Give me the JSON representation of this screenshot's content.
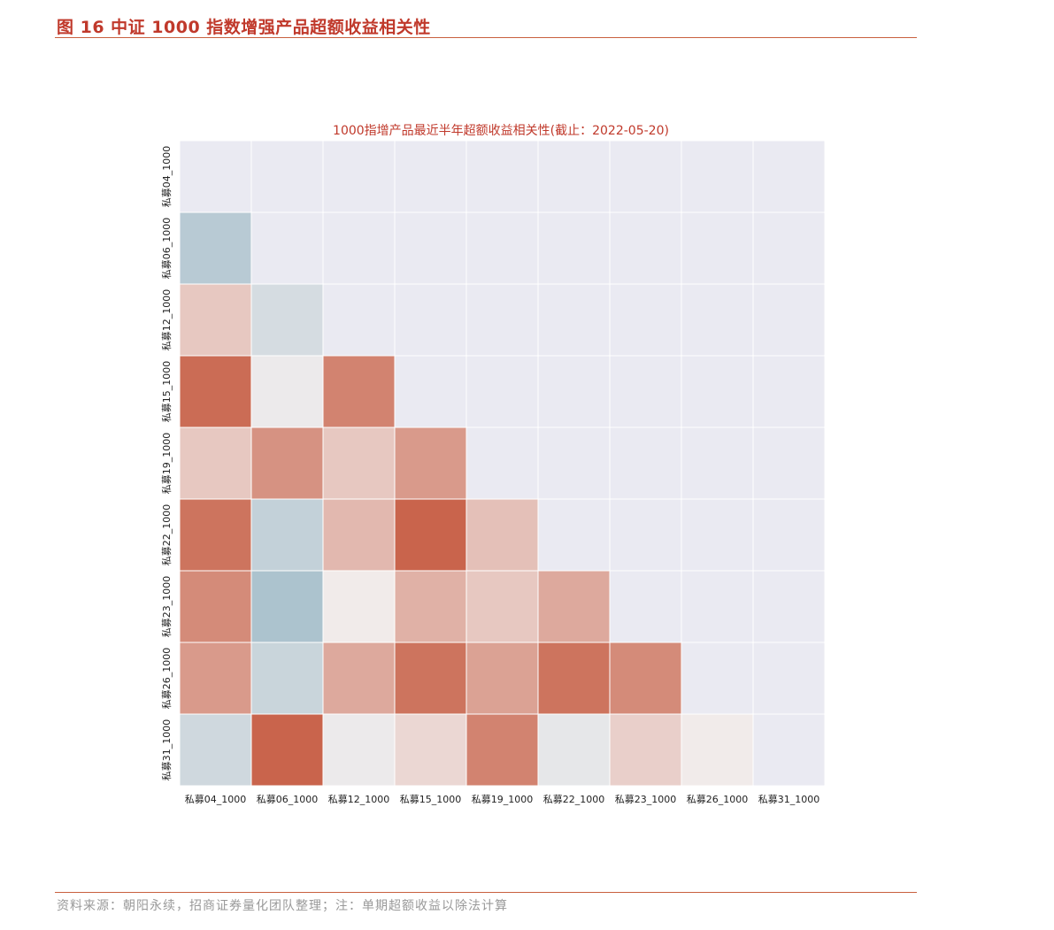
{
  "figure": {
    "title": "图 16 中证 1000 指数增强产品超额收益相关性",
    "source": "资料来源：朝阳永续，招商证券量化团队整理；注：单期超额收益以除法计算"
  },
  "colors": {
    "accent": "#c0392b",
    "background_cell": "#eaeaf2",
    "grid": "#ffffff",
    "high": "#c4553a",
    "neutral": "#f2eeee",
    "low": "#7da6b9"
  },
  "chart_data": {
    "type": "heatmap",
    "title": "1000指增产品最近半年超额收益相关性(截止：2022-05-20)",
    "labels": [
      "私募04_1000",
      "私募06_1000",
      "私募12_1000",
      "私募15_1000",
      "私募19_1000",
      "私募22_1000",
      "私募23_1000",
      "私募26_1000",
      "私募31_1000"
    ],
    "mask": "upper-triangle-and-diagonal",
    "value_range": [
      -1,
      1
    ],
    "values": [
      [
        null,
        null,
        null,
        null,
        null,
        null,
        null,
        null,
        null
      ],
      [
        -0.5,
        null,
        null,
        null,
        null,
        null,
        null,
        null,
        null
      ],
      [
        0.25,
        -0.25,
        null,
        null,
        null,
        null,
        null,
        null,
        null
      ],
      [
        0.85,
        -0.05,
        0.7,
        null,
        null,
        null,
        null,
        null,
        null
      ],
      [
        0.25,
        0.6,
        0.25,
        0.55,
        null,
        null,
        null,
        null,
        null
      ],
      [
        0.8,
        -0.4,
        0.35,
        0.9,
        0.3,
        null,
        null,
        null,
        null
      ],
      [
        0.65,
        -0.6,
        0.02,
        0.4,
        0.25,
        0.45,
        null,
        null,
        null
      ],
      [
        0.55,
        -0.35,
        0.45,
        0.8,
        0.5,
        0.8,
        0.65,
        null,
        null
      ],
      [
        -0.3,
        0.9,
        -0.05,
        0.15,
        0.7,
        -0.1,
        0.2,
        0.02,
        null
      ]
    ]
  }
}
